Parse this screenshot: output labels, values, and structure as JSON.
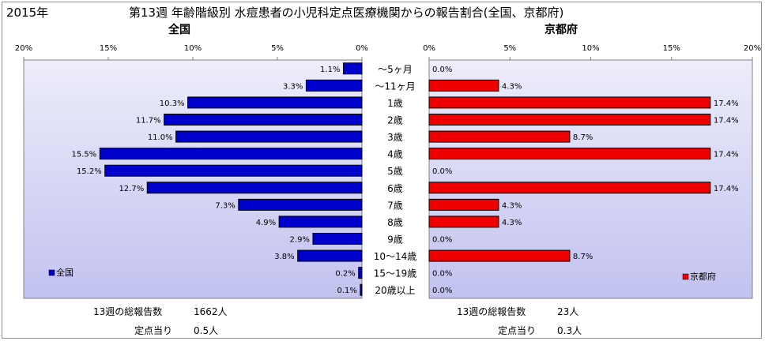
{
  "header": {
    "year": "2015年",
    "title": "第13週 年齢階級別 水痘患者の小児科定点医療機関からの報告割合(全国、京都府)"
  },
  "colors": {
    "national_bar": "#0000cc",
    "kyoto_bar": "#ee0000",
    "plot_bg_top": "#ededfb",
    "plot_bg_bottom": "#c2c2f0"
  },
  "chart_data": [
    {
      "type": "bar",
      "orientation": "horizontal-reversed",
      "title": "全国",
      "categories": [
        "～5ヶ月",
        "～11ヶ月",
        "1歳",
        "2歳",
        "3歳",
        "4歳",
        "5歳",
        "6歳",
        "7歳",
        "8歳",
        "9歳",
        "10～14歳",
        "15～19歳",
        "20歳以上"
      ],
      "series": [
        {
          "name": "全国",
          "values": [
            1.1,
            3.3,
            10.3,
            11.7,
            11.0,
            15.5,
            15.2,
            12.7,
            7.3,
            4.9,
            2.9,
            3.8,
            0.2,
            0.1
          ]
        }
      ],
      "value_labels": [
        "1.1%",
        "3.3%",
        "10.3%",
        "11.7%",
        "11.0%",
        "15.5%",
        "15.2%",
        "12.7%",
        "7.3%",
        "4.9%",
        "2.9%",
        "3.8%",
        "0.2%",
        "0.1%"
      ],
      "xlim": [
        0,
        20
      ],
      "ticks": [
        "20%",
        "15%",
        "10%",
        "5%",
        "0%"
      ],
      "legend": "bottom-left"
    },
    {
      "type": "bar",
      "orientation": "horizontal",
      "title": "京都府",
      "categories": [
        "～5ヶ月",
        "～11ヶ月",
        "1歳",
        "2歳",
        "3歳",
        "4歳",
        "5歳",
        "6歳",
        "7歳",
        "8歳",
        "9歳",
        "10～14歳",
        "15～19歳",
        "20歳以上"
      ],
      "series": [
        {
          "name": "京都府",
          "values": [
            0.0,
            4.3,
            17.4,
            17.4,
            8.7,
            17.4,
            0.0,
            17.4,
            4.3,
            4.3,
            0.0,
            8.7,
            0.0,
            0.0
          ]
        }
      ],
      "value_labels": [
        "0.0%",
        "4.3%",
        "17.4%",
        "17.4%",
        "8.7%",
        "17.4%",
        "0.0%",
        "17.4%",
        "4.3%",
        "4.3%",
        "0.0%",
        "8.7%",
        "0.0%",
        "0.0%"
      ],
      "xlim": [
        0,
        20
      ],
      "ticks": [
        "0%",
        "5%",
        "10%",
        "15%",
        "20%"
      ],
      "legend": "bottom-right"
    }
  ],
  "footer": {
    "national": {
      "reports_label": "13週の総報告数",
      "reports_value": "1662人",
      "per_site_label": "定点当り",
      "per_site_value": "0.5人"
    },
    "kyoto": {
      "reports_label": "13週の総報告数",
      "reports_value": "23人",
      "per_site_label": "定点当り",
      "per_site_value": "0.3人"
    }
  }
}
